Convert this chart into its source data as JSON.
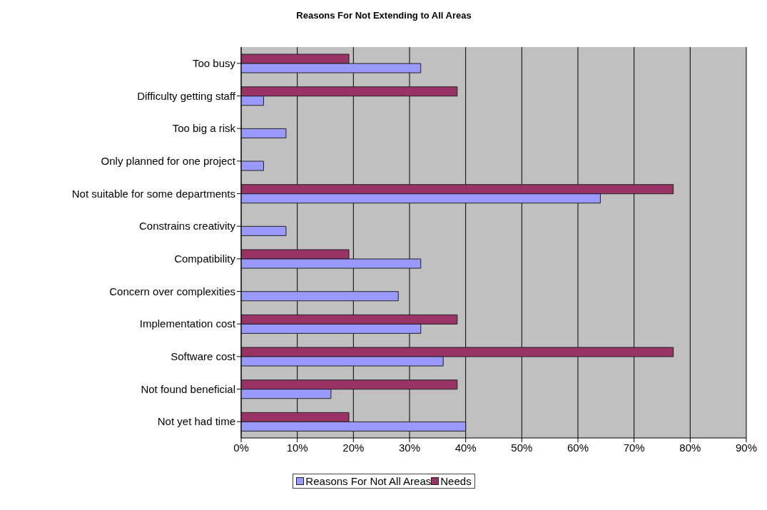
{
  "chart_data": {
    "type": "bar",
    "orientation": "horizontal",
    "title": "Reasons For Not Extending to All Areas",
    "categories": [
      "Too busy",
      "Difficulty getting staff",
      "Too big a risk",
      "Only planned for one project",
      "Not suitable for some departments",
      "Constrains creativity",
      "Compatibility",
      "Concern over complexities",
      "Implementation cost",
      "Software cost",
      "Not found beneficial",
      "Not yet had time"
    ],
    "series": [
      {
        "name": "Reasons For Not All Areas",
        "color": "#9999ff",
        "values": [
          32,
          4,
          8,
          4,
          64,
          8,
          32,
          28,
          32,
          36,
          16,
          40
        ]
      },
      {
        "name": "Needs",
        "color": "#993366",
        "values": [
          19.2,
          38.5,
          null,
          null,
          77,
          null,
          19.2,
          null,
          38.5,
          77,
          38.5,
          19.2
        ]
      }
    ],
    "xlim": [
      0,
      90
    ],
    "xticks": [
      {
        "value": 0,
        "label": "0%"
      },
      {
        "value": 10,
        "label": "10%"
      },
      {
        "value": 20,
        "label": "20%"
      },
      {
        "value": 30,
        "label": "30%"
      },
      {
        "value": 40,
        "label": "40%"
      },
      {
        "value": 50,
        "label": "50%"
      },
      {
        "value": 60,
        "label": "60%"
      },
      {
        "value": 70,
        "label": "70%"
      },
      {
        "value": 80,
        "label": "80%"
      },
      {
        "value": 90,
        "label": "90%"
      }
    ],
    "grid": "x",
    "legend": "bottom"
  }
}
